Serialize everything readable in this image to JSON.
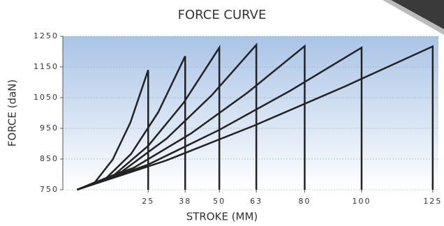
{
  "chart_data": {
    "type": "line",
    "title": "FORCE CURVE",
    "x_label": "STROKE (MM)",
    "y_label": "FORCE (daN)",
    "series": [
      {
        "color": "#222222",
        "x": [
          0,
          6.25,
          12.5,
          18.75,
          25,
          25
        ],
        "values": [
          750,
          774,
          848,
          969,
          1140,
          750
        ]
      },
      {
        "color": "#222222",
        "x": [
          0,
          9.5,
          19,
          28.5,
          38,
          38
        ],
        "values": [
          750,
          781,
          867,
          1002,
          1185,
          750
        ]
      },
      {
        "color": "#222222",
        "x": [
          0,
          12.5,
          25,
          37.5,
          50,
          50
        ],
        "values": [
          750,
          794,
          893,
          1034,
          1213,
          750
        ]
      },
      {
        "color": "#222222",
        "x": [
          0,
          15.75,
          31.5,
          47.25,
          63,
          63
        ],
        "values": [
          750,
          809,
          917,
          1057,
          1222,
          750
        ]
      },
      {
        "color": "#222222",
        "x": [
          0,
          20,
          40,
          60,
          80,
          80
        ],
        "values": [
          750,
          822,
          933,
          1067,
          1218,
          750
        ]
      },
      {
        "color": "#222222",
        "x": [
          0,
          25,
          50,
          75,
          100,
          100
        ],
        "values": [
          750,
          832,
          945,
          1073,
          1213,
          750
        ]
      },
      {
        "color": "#222222",
        "x": [
          0,
          31.25,
          62.5,
          93.75,
          125,
          125
        ],
        "values": [
          750,
          845,
          960,
          1085,
          1217,
          750
        ]
      }
    ],
    "xlim": [
      -5,
      127
    ],
    "xticks": [
      25,
      38,
      50,
      63,
      80,
      100,
      125
    ],
    "ylim": [
      750,
      1250
    ],
    "yticks": [
      750,
      850,
      950,
      1050,
      1150,
      1250
    ],
    "grid": true
  }
}
